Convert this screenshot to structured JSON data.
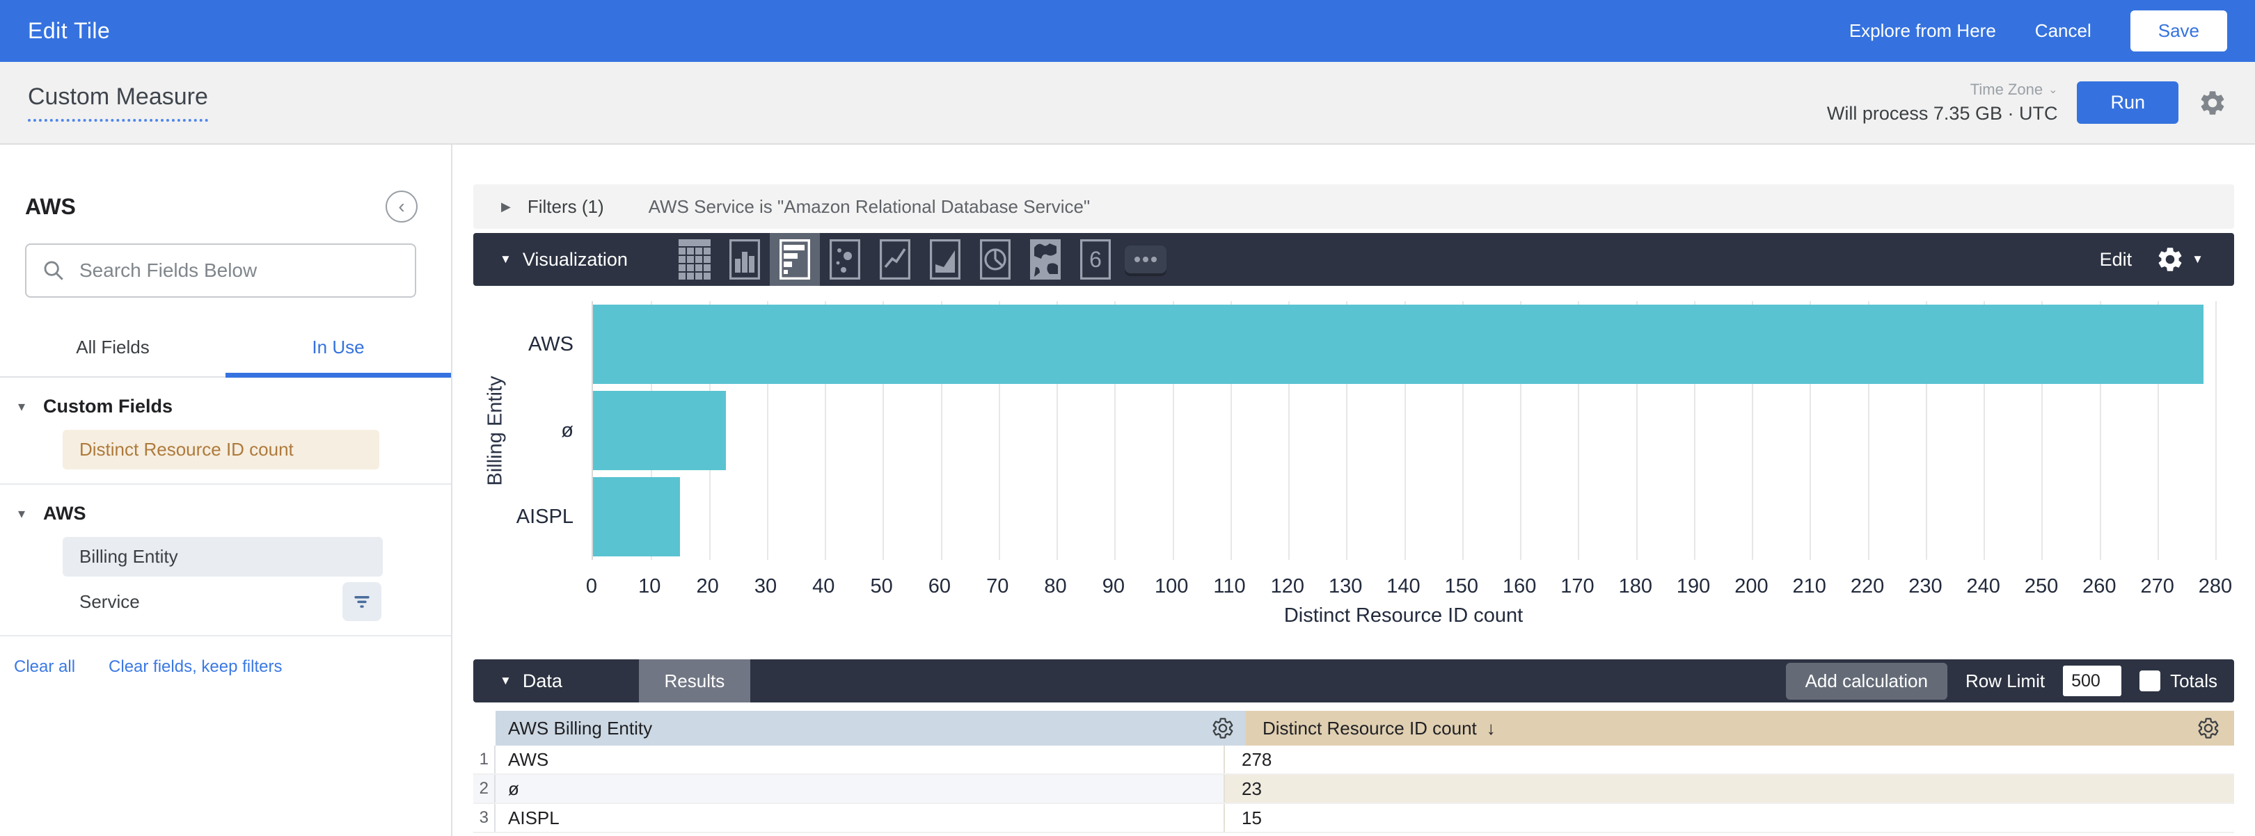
{
  "topbar": {
    "title": "Edit Tile",
    "explore": "Explore from Here",
    "cancel": "Cancel",
    "save": "Save"
  },
  "toolbar": {
    "title": "Custom Measure",
    "timezone_label": "Time Zone",
    "process_text": "Will process 7.35 GB · UTC",
    "run": "Run"
  },
  "sidebar": {
    "view_name": "AWS",
    "search_placeholder": "Search Fields Below",
    "tabs": [
      {
        "label": "All Fields"
      },
      {
        "label": "In Use"
      }
    ],
    "sections": [
      {
        "title": "Custom Fields",
        "fields": [
          {
            "label": "Distinct Resource ID count"
          }
        ]
      },
      {
        "title": "AWS",
        "fields": [
          {
            "label": "Billing Entity"
          },
          {
            "label": "Service"
          }
        ]
      }
    ],
    "footer_links": [
      "Clear all",
      "Clear fields, keep filters"
    ]
  },
  "filters": {
    "label": "Filters (1)",
    "summary": "AWS Service is \"Amazon Relational Database Service\""
  },
  "viz": {
    "label": "Visualization",
    "icons": [
      "table",
      "column-chart",
      "bar-chart",
      "scatter",
      "line-chart",
      "area-chart",
      "pie-chart",
      "map",
      "single-value",
      "more"
    ],
    "selected_icon": "bar-chart",
    "edit": "Edit"
  },
  "chart_data": {
    "type": "bar",
    "orientation": "horizontal",
    "categories": [
      "AWS",
      "ø",
      "AISPL"
    ],
    "values": [
      278,
      23,
      15
    ],
    "title": "",
    "xlabel": "Distinct Resource ID count",
    "ylabel": "Billing Entity",
    "xlim": [
      0,
      280
    ],
    "xtick_step": 10,
    "grid": true,
    "legend": false,
    "bar_color": "#59c3d1"
  },
  "data_panel": {
    "label": "Data",
    "results_tab": "Results",
    "add_calculation": "Add calculation",
    "row_limit_label": "Row Limit",
    "row_limit_value": "500",
    "totals_label": "Totals"
  },
  "table": {
    "columns": [
      {
        "label": "AWS Billing Entity"
      },
      {
        "label": "Distinct Resource ID count",
        "sorted": "desc"
      }
    ],
    "rows": [
      [
        "AWS",
        "278"
      ],
      [
        "ø",
        "23"
      ],
      [
        "AISPL",
        "15"
      ]
    ]
  },
  "colors": {
    "accent_blue": "#3572df",
    "dark_bar": "#2d3342",
    "bar_teal": "#59c3d1",
    "measure_header_tan": "#e0cfb1",
    "dimension_header_blue": "#ccd8e3",
    "custom_field_text": "#ae7a3c",
    "custom_field_bg": "#f6eee0"
  }
}
